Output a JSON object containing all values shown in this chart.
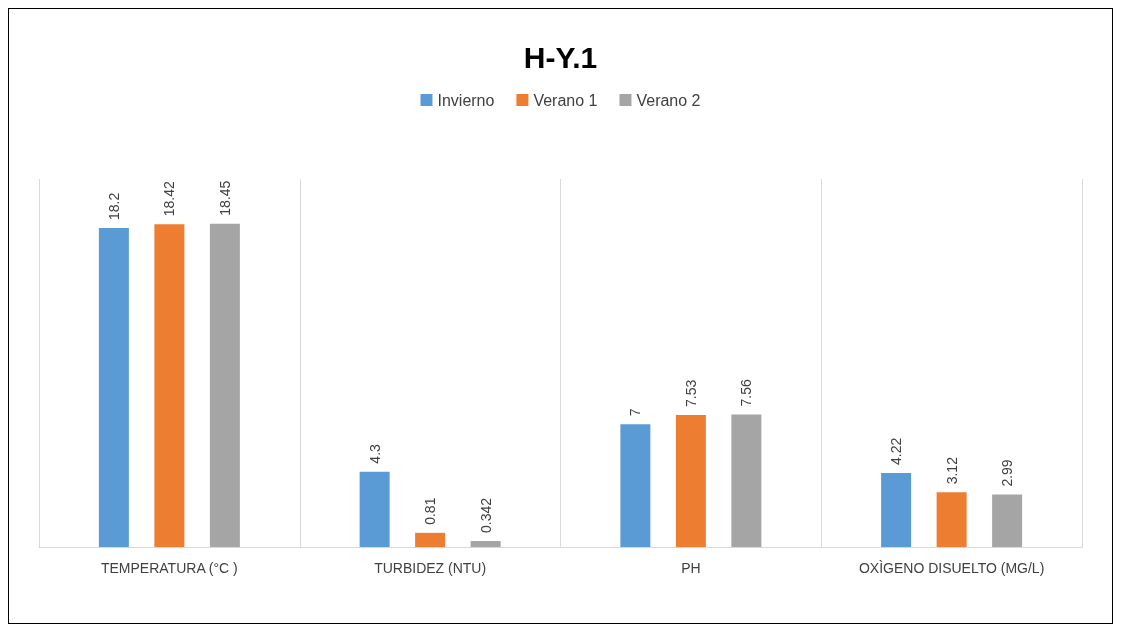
{
  "chart_data": {
    "type": "bar",
    "title": "H-Y.1",
    "categories": [
      "TEMPERATURA (°C )",
      "TURBIDEZ (NTU)",
      "PH",
      "OXÌGENO DISUELTO (MG/L)"
    ],
    "series": [
      {
        "name": "Invierno",
        "color": "#5b9bd5",
        "values": [
          18.2,
          4.3,
          7,
          4.22
        ]
      },
      {
        "name": "Verano 1",
        "color": "#ed7d31",
        "values": [
          18.42,
          0.81,
          7.53,
          3.12
        ]
      },
      {
        "name": "Verano 2",
        "color": "#a5a5a5",
        "values": [
          18.45,
          0.342,
          7.56,
          2.99
        ]
      }
    ],
    "data_labels": true,
    "grid": "x",
    "legend": "top"
  }
}
